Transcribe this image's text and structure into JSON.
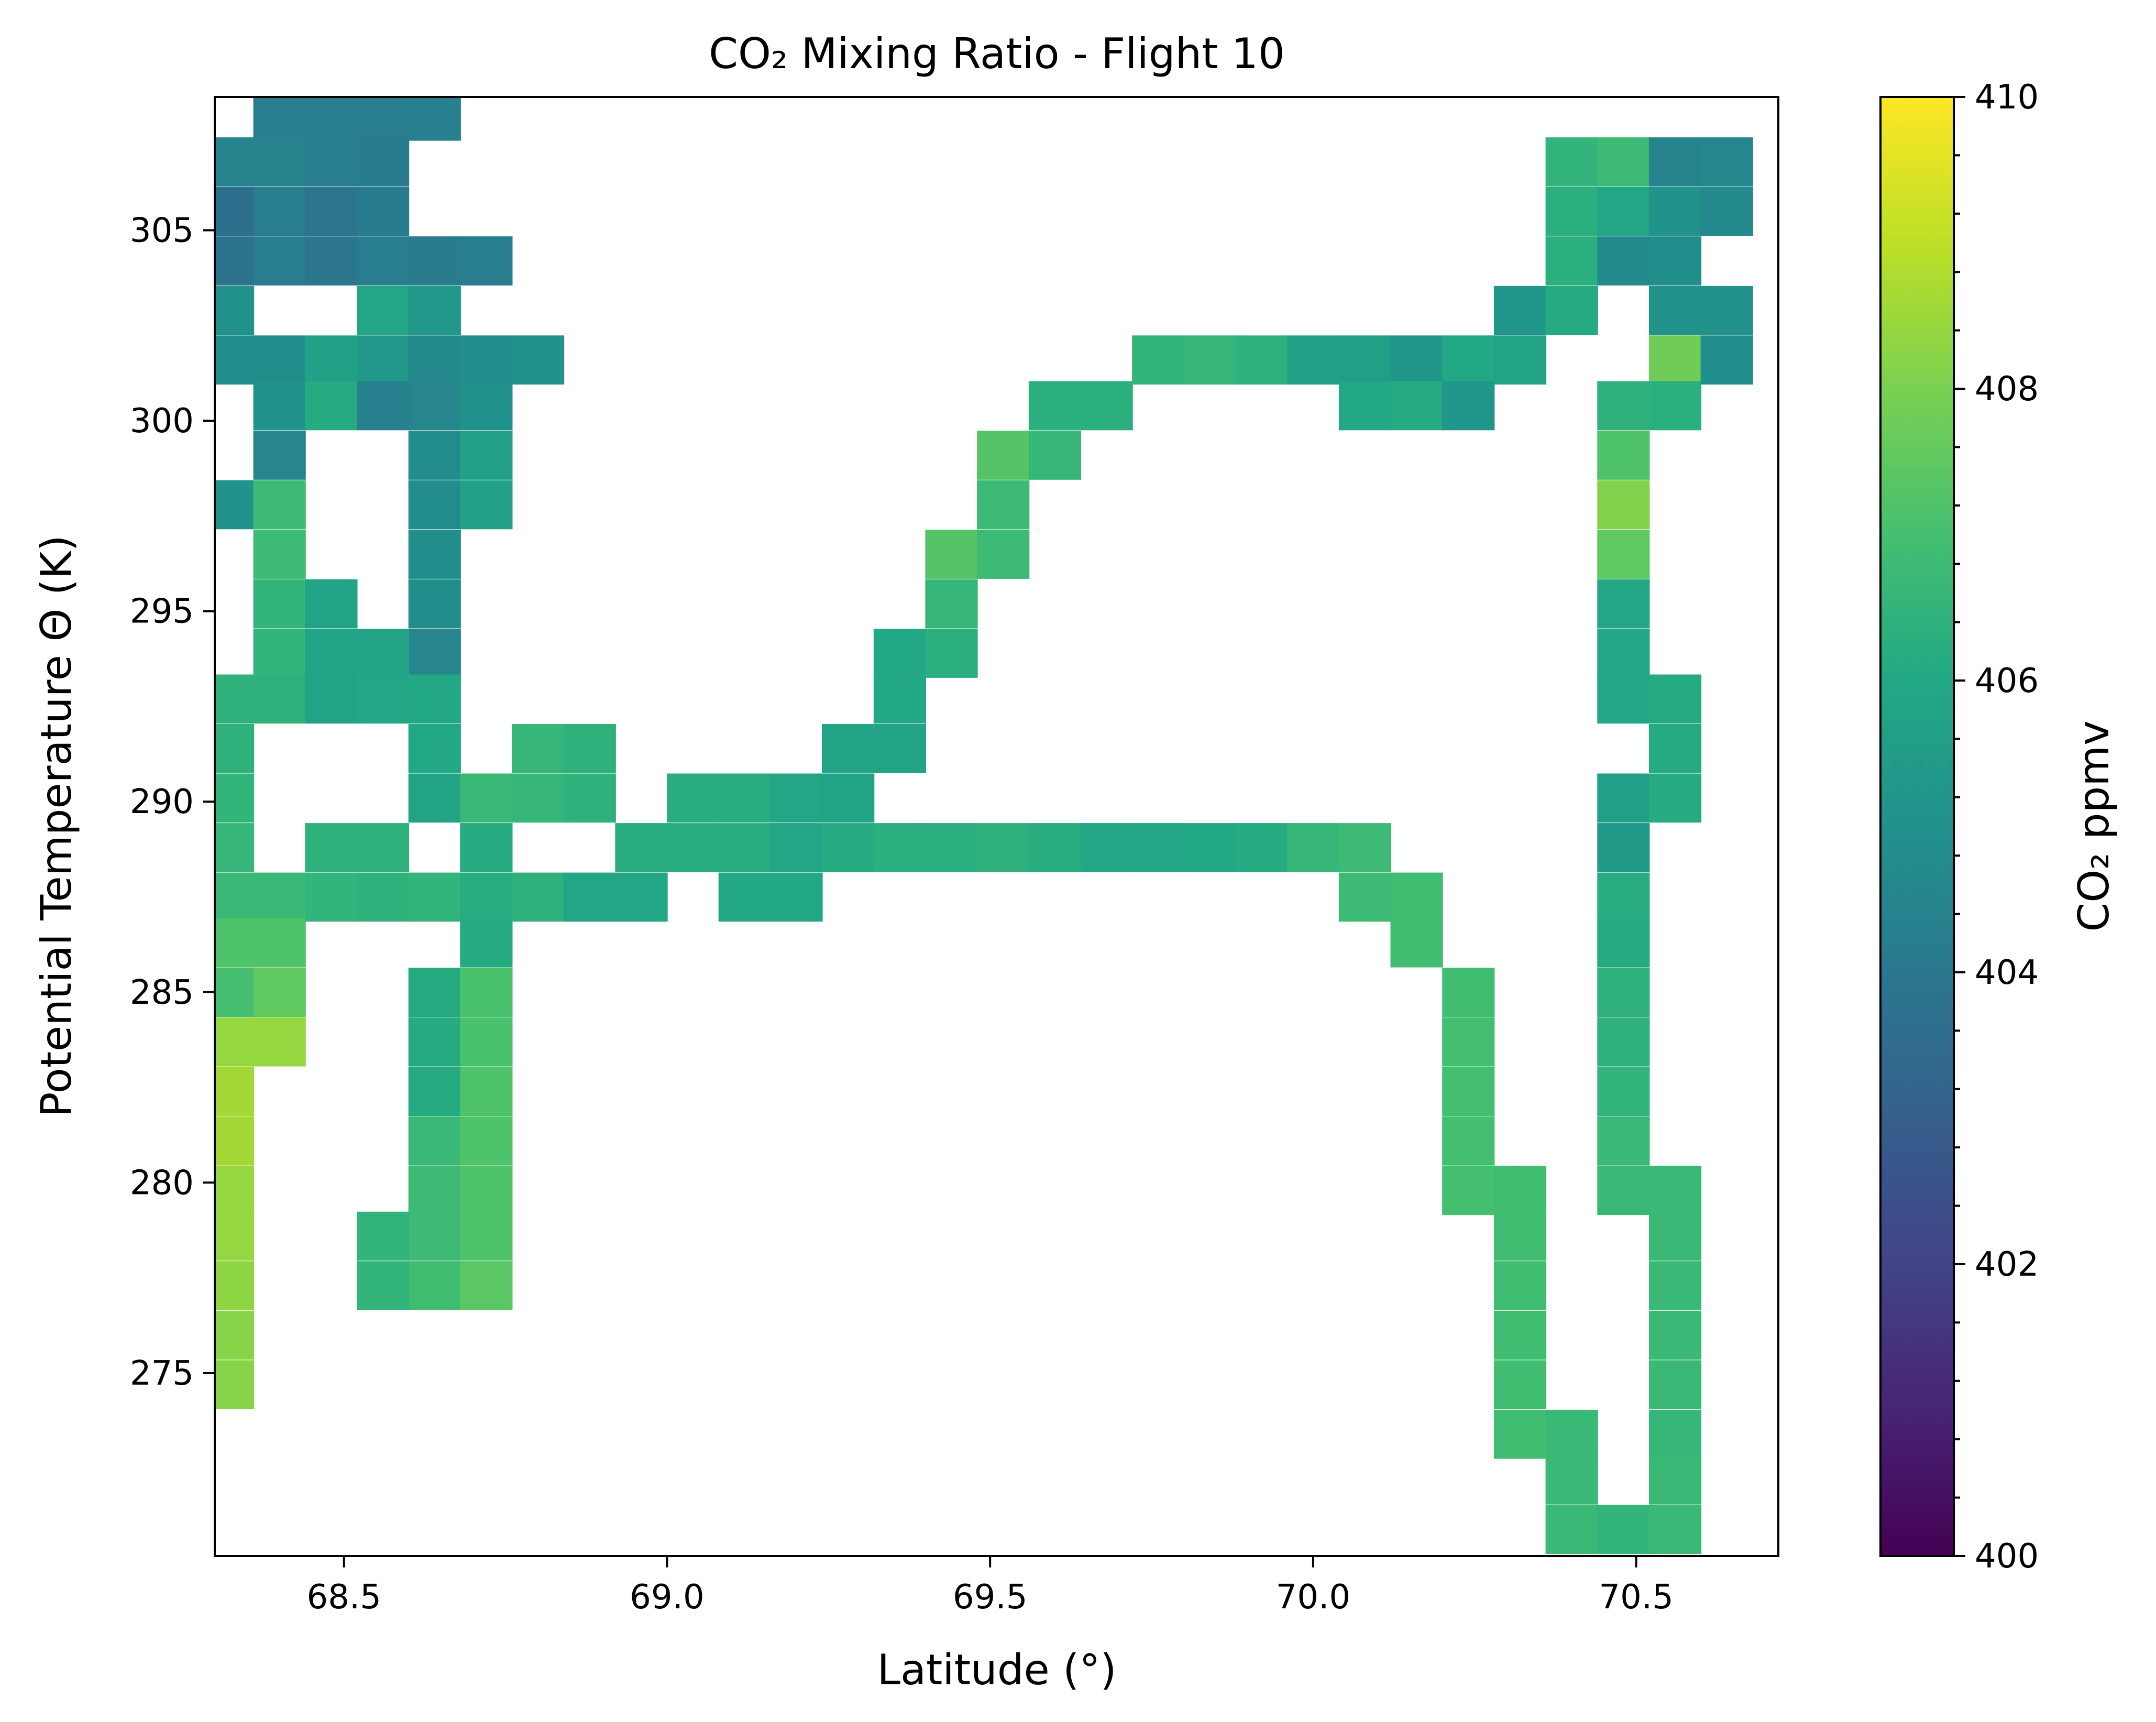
{
  "chart_data": {
    "type": "heatmap",
    "title": "CO₂ Mixing Ratio - Flight 10",
    "xlabel": "Latitude (°)",
    "ylabel": "Potential Temperature Θ (K)",
    "xlim": [
      68.3,
      70.72
    ],
    "ylim": [
      270.2,
      308.5
    ],
    "xticks": [
      "68.5",
      "69.0",
      "69.5",
      "70.0",
      "70.5"
    ],
    "yticks": [
      "275",
      "280",
      "285",
      "290",
      "295",
      "300",
      "305"
    ],
    "grid": false,
    "colorbar": {
      "label": "CO₂ ppmv",
      "range": [
        400,
        410
      ],
      "colormap": "viridis",
      "ticks": [
        "400",
        "402",
        "404",
        "406",
        "408",
        "410"
      ]
    },
    "bin_width": {
      "lat": 0.0806,
      "theta": 1.277
    },
    "bins": [
      [
        68.4,
        308.0,
        404.2
      ],
      [
        68.4,
        306.8,
        404.4
      ],
      [
        68.4,
        305.5,
        404.2
      ],
      [
        68.4,
        304.2,
        404.2
      ],
      [
        68.4,
        299.1,
        404.5
      ],
      [
        68.48,
        308.0,
        404.2
      ],
      [
        68.48,
        306.8,
        404.2
      ],
      [
        68.48,
        305.5,
        403.9
      ],
      [
        68.48,
        304.2,
        403.9
      ],
      [
        68.56,
        308.0,
        404.2
      ],
      [
        68.56,
        306.8,
        404.1
      ],
      [
        68.56,
        305.5,
        404.1
      ],
      [
        68.56,
        304.2,
        404.2
      ],
      [
        68.64,
        308.0,
        404.3
      ],
      [
        68.32,
        306.8,
        404.4
      ],
      [
        68.32,
        305.5,
        403.7
      ],
      [
        68.32,
        304.2,
        403.8
      ],
      [
        68.64,
        304.2,
        404.1
      ],
      [
        68.72,
        304.2,
        404.2
      ],
      [
        68.32,
        302.9,
        405.0
      ],
      [
        68.32,
        301.6,
        404.9
      ],
      [
        68.4,
        301.6,
        404.9
      ],
      [
        68.4,
        300.4,
        405.1
      ],
      [
        68.48,
        301.6,
        405.7
      ],
      [
        68.48,
        300.4,
        406.1
      ],
      [
        68.56,
        302.9,
        405.9
      ],
      [
        68.56,
        301.6,
        405.3
      ],
      [
        68.56,
        300.4,
        404.3
      ],
      [
        68.64,
        302.9,
        405.3
      ],
      [
        68.64,
        301.6,
        404.7
      ],
      [
        68.64,
        300.4,
        404.5
      ],
      [
        68.64,
        299.1,
        404.8
      ],
      [
        68.64,
        297.8,
        404.8
      ],
      [
        68.64,
        296.5,
        404.9
      ],
      [
        68.64,
        295.2,
        404.9
      ],
      [
        68.64,
        293.9,
        404.5
      ],
      [
        68.72,
        301.6,
        404.9
      ],
      [
        68.72,
        300.4,
        405.0
      ],
      [
        68.72,
        299.1,
        405.7
      ],
      [
        68.72,
        297.8,
        405.7
      ],
      [
        68.8,
        301.6,
        405.1
      ],
      [
        68.32,
        297.8,
        405.1
      ],
      [
        68.4,
        297.8,
        406.8
      ],
      [
        68.4,
        296.5,
        406.8
      ],
      [
        68.4,
        295.2,
        406.5
      ],
      [
        68.4,
        293.9,
        406.5
      ],
      [
        68.4,
        292.7,
        406.4
      ],
      [
        68.48,
        295.2,
        405.8
      ],
      [
        68.48,
        293.9,
        405.8
      ],
      [
        68.48,
        292.7,
        405.8
      ],
      [
        68.56,
        293.9,
        405.8
      ],
      [
        68.56,
        292.7,
        405.9
      ],
      [
        68.64,
        292.7,
        406.0
      ],
      [
        68.64,
        291.4,
        406.0
      ],
      [
        68.64,
        290.1,
        405.8
      ],
      [
        68.32,
        292.7,
        406.4
      ],
      [
        68.32,
        291.4,
        406.4
      ],
      [
        68.32,
        290.1,
        406.5
      ],
      [
        68.32,
        288.8,
        406.6
      ],
      [
        68.32,
        287.5,
        406.7
      ],
      [
        68.32,
        286.3,
        407.2
      ],
      [
        68.32,
        285.0,
        407.0
      ],
      [
        68.32,
        283.7,
        408.4
      ],
      [
        68.32,
        282.4,
        408.6
      ],
      [
        68.32,
        281.1,
        408.6
      ],
      [
        68.32,
        279.8,
        408.4
      ],
      [
        68.32,
        278.6,
        408.4
      ],
      [
        68.32,
        277.3,
        408.3
      ],
      [
        68.32,
        276.0,
        408.2
      ],
      [
        68.32,
        274.7,
        408.2
      ],
      [
        68.4,
        287.5,
        406.7
      ],
      [
        68.4,
        286.3,
        407.2
      ],
      [
        68.4,
        285.0,
        407.5
      ],
      [
        68.4,
        283.7,
        408.4
      ],
      [
        68.48,
        288.8,
        406.4
      ],
      [
        68.48,
        287.5,
        406.5
      ],
      [
        68.56,
        288.8,
        406.4
      ],
      [
        68.56,
        287.5,
        406.4
      ],
      [
        68.64,
        287.5,
        406.5
      ],
      [
        68.64,
        285.0,
        406.1
      ],
      [
        68.64,
        283.7,
        406.1
      ],
      [
        68.64,
        282.4,
        406.1
      ],
      [
        68.64,
        281.1,
        406.7
      ],
      [
        68.64,
        279.8,
        406.8
      ],
      [
        68.64,
        278.6,
        406.8
      ],
      [
        68.64,
        277.3,
        406.9
      ],
      [
        68.56,
        278.6,
        406.5
      ],
      [
        68.56,
        277.3,
        406.5
      ],
      [
        68.72,
        290.1,
        406.7
      ],
      [
        68.72,
        288.8,
        406.1
      ],
      [
        68.72,
        287.5,
        406.2
      ],
      [
        68.72,
        286.3,
        406.1
      ],
      [
        68.72,
        285.0,
        407.1
      ],
      [
        68.72,
        283.7,
        407.1
      ],
      [
        68.72,
        282.4,
        407.2
      ],
      [
        68.72,
        281.1,
        407.2
      ],
      [
        68.72,
        279.8,
        407.2
      ],
      [
        68.72,
        278.6,
        407.2
      ],
      [
        68.72,
        277.3,
        407.4
      ],
      [
        68.8,
        291.4,
        406.6
      ],
      [
        68.8,
        290.1,
        406.6
      ],
      [
        68.8,
        287.5,
        406.4
      ],
      [
        68.88,
        291.4,
        406.4
      ],
      [
        68.88,
        290.1,
        406.4
      ],
      [
        68.88,
        287.5,
        405.9
      ],
      [
        68.96,
        288.8,
        406.2
      ],
      [
        68.96,
        287.5,
        405.9
      ],
      [
        69.04,
        290.1,
        406.2
      ],
      [
        69.04,
        288.8,
        406.2
      ],
      [
        69.12,
        290.1,
        406.2
      ],
      [
        69.12,
        288.8,
        406.2
      ],
      [
        69.12,
        287.5,
        406.0
      ],
      [
        69.2,
        290.1,
        405.9
      ],
      [
        69.2,
        288.8,
        405.9
      ],
      [
        69.2,
        287.5,
        406.0
      ],
      [
        69.28,
        291.4,
        405.8
      ],
      [
        69.28,
        290.1,
        405.8
      ],
      [
        69.28,
        288.8,
        406.1
      ],
      [
        69.36,
        293.9,
        406.0
      ],
      [
        69.36,
        292.7,
        406.0
      ],
      [
        69.36,
        291.4,
        405.8
      ],
      [
        69.36,
        288.8,
        406.3
      ],
      [
        69.44,
        293.9,
        406.3
      ],
      [
        69.44,
        288.8,
        406.3
      ],
      [
        69.44,
        296.5,
        407.3
      ],
      [
        69.44,
        295.2,
        406.6
      ],
      [
        69.52,
        299.1,
        407.3
      ],
      [
        69.52,
        297.8,
        406.8
      ],
      [
        69.52,
        296.5,
        406.8
      ],
      [
        69.52,
        288.8,
        406.4
      ],
      [
        69.6,
        300.4,
        406.3
      ],
      [
        69.6,
        299.1,
        406.6
      ],
      [
        69.6,
        288.8,
        406.2
      ],
      [
        69.68,
        300.4,
        406.3
      ],
      [
        69.68,
        288.8,
        405.9
      ],
      [
        69.76,
        301.6,
        406.5
      ],
      [
        69.76,
        288.8,
        405.9
      ],
      [
        69.84,
        301.6,
        406.6
      ],
      [
        69.84,
        288.8,
        406.0
      ],
      [
        69.92,
        301.6,
        406.4
      ],
      [
        69.92,
        288.8,
        406.1
      ],
      [
        70.0,
        301.6,
        405.7
      ],
      [
        70.0,
        288.8,
        406.6
      ],
      [
        70.08,
        301.6,
        405.6
      ],
      [
        70.08,
        300.4,
        406.0
      ],
      [
        70.08,
        288.8,
        406.8
      ],
      [
        70.08,
        287.5,
        406.8
      ],
      [
        70.16,
        301.6,
        405.2
      ],
      [
        70.16,
        300.4,
        406.1
      ],
      [
        70.16,
        287.5,
        406.9
      ],
      [
        70.16,
        286.3,
        406.9
      ],
      [
        70.24,
        301.6,
        406.0
      ],
      [
        70.24,
        300.4,
        405.2
      ],
      [
        70.24,
        285.0,
        406.9
      ],
      [
        70.24,
        283.7,
        407.0
      ],
      [
        70.24,
        282.4,
        407.0
      ],
      [
        70.24,
        281.1,
        407.0
      ],
      [
        70.24,
        279.8,
        407.0
      ],
      [
        70.32,
        302.9,
        405.2
      ],
      [
        70.32,
        301.6,
        405.8
      ],
      [
        70.32,
        279.8,
        406.9
      ],
      [
        70.32,
        278.6,
        406.9
      ],
      [
        70.32,
        277.3,
        406.9
      ],
      [
        70.32,
        276.0,
        406.9
      ],
      [
        70.32,
        274.7,
        406.9
      ],
      [
        70.32,
        273.4,
        406.9
      ],
      [
        70.4,
        306.8,
        406.5
      ],
      [
        70.4,
        305.5,
        406.3
      ],
      [
        70.4,
        304.2,
        406.3
      ],
      [
        70.4,
        302.9,
        406.1
      ],
      [
        70.4,
        273.4,
        406.7
      ],
      [
        70.4,
        272.2,
        406.7
      ],
      [
        70.4,
        270.9,
        406.7
      ],
      [
        70.48,
        306.8,
        406.8
      ],
      [
        70.48,
        305.5,
        405.9
      ],
      [
        70.48,
        304.2,
        404.7
      ],
      [
        70.48,
        300.4,
        406.4
      ],
      [
        70.48,
        299.1,
        407.2
      ],
      [
        70.48,
        297.8,
        408.1
      ],
      [
        70.48,
        296.5,
        407.5
      ],
      [
        70.48,
        295.2,
        405.9
      ],
      [
        70.48,
        293.9,
        405.9
      ],
      [
        70.48,
        292.7,
        405.9
      ],
      [
        70.48,
        290.1,
        405.6
      ],
      [
        70.48,
        288.8,
        405.4
      ],
      [
        70.48,
        287.5,
        406.2
      ],
      [
        70.48,
        286.3,
        406.1
      ],
      [
        70.48,
        285.0,
        406.4
      ],
      [
        70.48,
        283.7,
        406.4
      ],
      [
        70.48,
        282.4,
        406.5
      ],
      [
        70.48,
        281.1,
        406.7
      ],
      [
        70.48,
        279.8,
        406.7
      ],
      [
        70.48,
        270.9,
        406.5
      ],
      [
        70.56,
        306.8,
        404.4
      ],
      [
        70.56,
        305.5,
        405.1
      ],
      [
        70.56,
        304.2,
        404.9
      ],
      [
        70.56,
        302.9,
        405.1
      ],
      [
        70.56,
        301.6,
        407.8
      ],
      [
        70.56,
        300.4,
        406.3
      ],
      [
        70.56,
        292.7,
        406.1
      ],
      [
        70.56,
        291.4,
        406.1
      ],
      [
        70.56,
        290.1,
        406.1
      ],
      [
        70.56,
        279.8,
        406.7
      ],
      [
        70.56,
        278.6,
        406.7
      ],
      [
        70.56,
        277.3,
        406.7
      ],
      [
        70.56,
        276.0,
        406.7
      ],
      [
        70.56,
        274.7,
        406.7
      ],
      [
        70.56,
        273.4,
        406.6
      ],
      [
        70.56,
        272.2,
        406.7
      ],
      [
        70.56,
        270.9,
        406.7
      ],
      [
        70.64,
        306.8,
        404.6
      ],
      [
        70.64,
        305.5,
        404.7
      ],
      [
        70.64,
        302.9,
        405.1
      ],
      [
        70.64,
        301.6,
        404.9
      ]
    ]
  }
}
